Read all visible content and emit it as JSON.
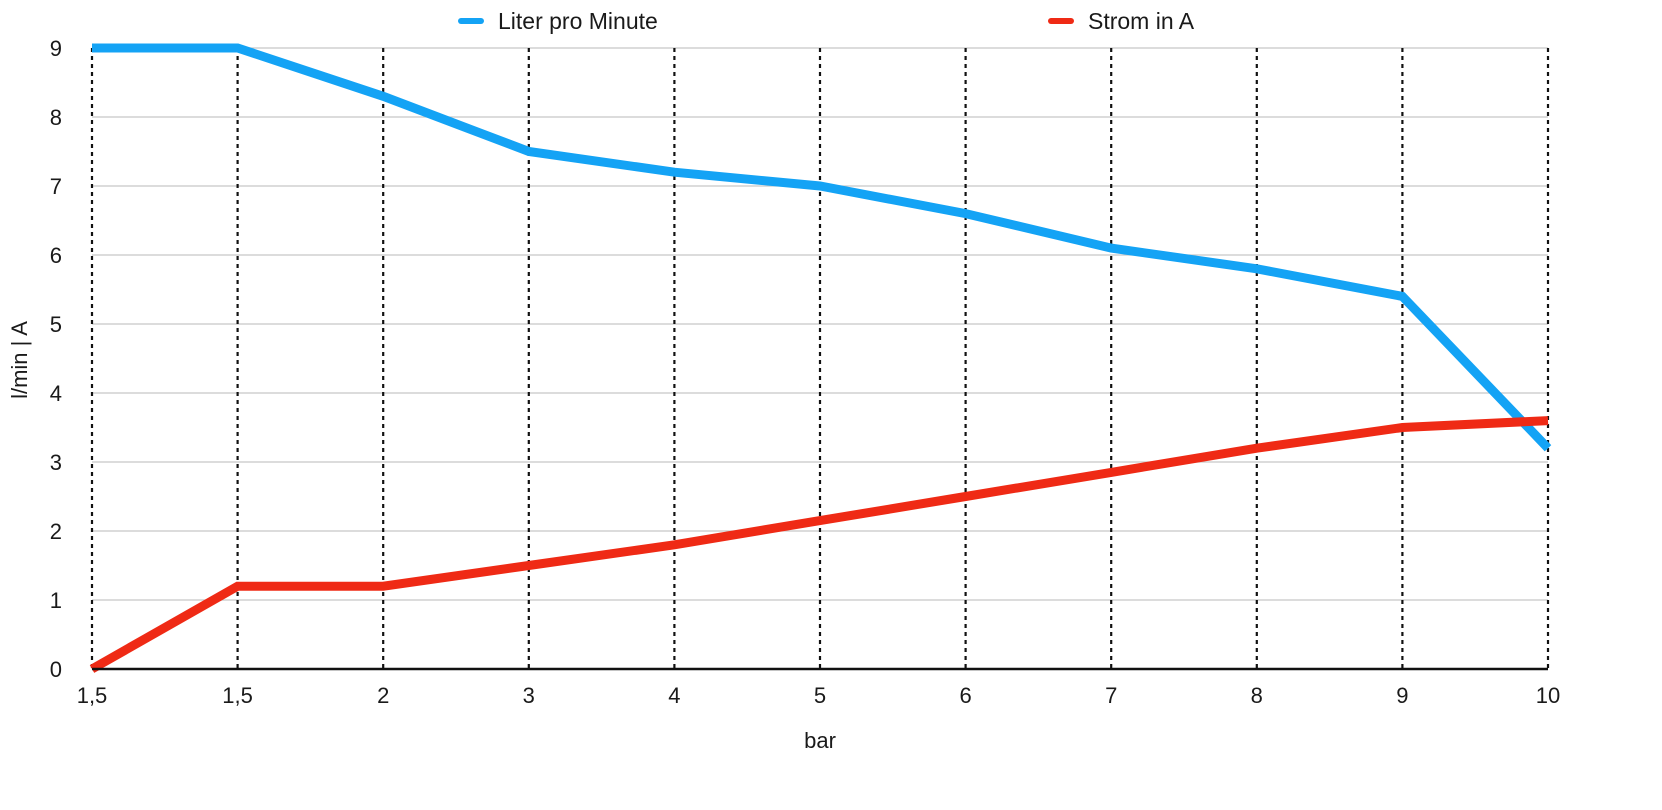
{
  "chart_data": {
    "type": "line",
    "title": "",
    "xlabel": "bar",
    "ylabel": "l/min | A",
    "categories": [
      "1,5",
      "1,5",
      "2",
      "3",
      "4",
      "5",
      "6",
      "7",
      "8",
      "9",
      "10"
    ],
    "ylim": [
      0,
      9
    ],
    "yticks": [
      "0",
      "1",
      "2",
      "3",
      "4",
      "5",
      "6",
      "7",
      "8",
      "9"
    ],
    "grid": {
      "horizontal": "solid",
      "vertical": "dotted"
    },
    "legend_position": "top",
    "series": [
      {
        "name": "Liter pro Minute",
        "color": "#14a3f5",
        "values": [
          9.0,
          9.0,
          8.3,
          7.5,
          7.2,
          7.0,
          6.6,
          6.1,
          5.8,
          5.4,
          3.2
        ]
      },
      {
        "name": "Strom in A",
        "color": "#ef2a15",
        "values": [
          0.0,
          1.2,
          1.2,
          1.5,
          1.8,
          2.15,
          2.5,
          2.85,
          3.2,
          3.5,
          3.6
        ]
      }
    ]
  }
}
